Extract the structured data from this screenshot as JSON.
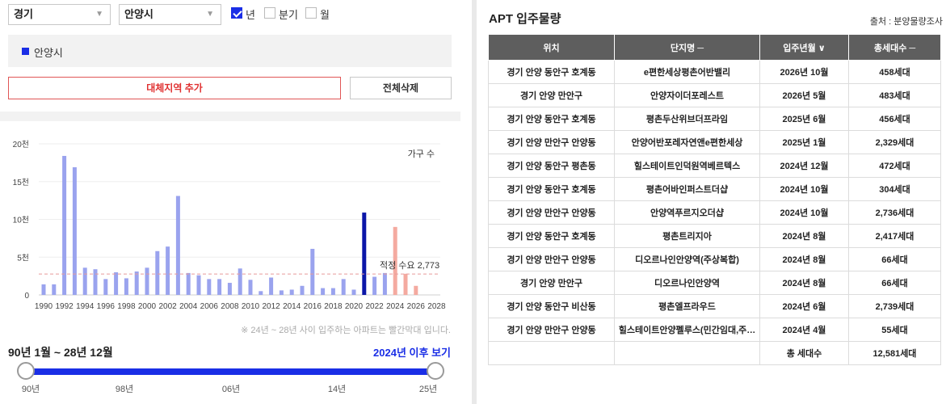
{
  "filters": {
    "province": "경기",
    "city": "안양시",
    "period_options": [
      {
        "label": "년",
        "checked": true
      },
      {
        "label": "분기",
        "checked": false
      },
      {
        "label": "월",
        "checked": false
      }
    ]
  },
  "region": {
    "name": "안양시",
    "color": "#1a2ee6"
  },
  "buttons": {
    "add": "대체지역 추가",
    "delete_all": "전체삭제"
  },
  "chart_data": {
    "type": "bar",
    "legend": "가구 수",
    "categories": [
      "1990",
      "1991",
      "1992",
      "1993",
      "1994",
      "1995",
      "1996",
      "1997",
      "1998",
      "1999",
      "2000",
      "2001",
      "2002",
      "2003",
      "2004",
      "2005",
      "2006",
      "2007",
      "2008",
      "2009",
      "2010",
      "2011",
      "2012",
      "2013",
      "2014",
      "2015",
      "2016",
      "2017",
      "2018",
      "2019",
      "2020",
      "2021",
      "2022",
      "2023",
      "2024",
      "2025",
      "2026",
      "2027",
      "2028"
    ],
    "values": [
      1400,
      1400,
      18400,
      16900,
      3600,
      3400,
      2100,
      3000,
      2200,
      3100,
      3600,
      5800,
      6400,
      13100,
      2900,
      2600,
      2100,
      2100,
      1600,
      3500,
      2000,
      500,
      2300,
      600,
      700,
      1200,
      6100,
      900,
      900,
      2100,
      700,
      10900,
      2400,
      2900,
      9000,
      2800,
      1200,
      0,
      0
    ],
    "x_tick_labels": [
      "1990",
      "1992",
      "1994",
      "1996",
      "1998",
      "2000",
      "2002",
      "2004",
      "2006",
      "2008",
      "2010",
      "2012",
      "2014",
      "2016",
      "2018",
      "2020",
      "2022",
      "2024",
      "2026",
      "2028"
    ],
    "y_tick_labels": [
      "0",
      "5천",
      "10천",
      "15천",
      "20천"
    ],
    "ylim": [
      0,
      20000
    ],
    "reference_line": {
      "label": "적정 수요",
      "value": 2773,
      "value_label": "2,773",
      "color": "#e89a9a"
    },
    "colors": {
      "past": "#9aa3ee",
      "current": "#0b16a8",
      "future": "#f4aaa0"
    },
    "highlight_index": 31,
    "future_from": "2024"
  },
  "chart_note": "※ 24년 ~ 28년 사이 입주하는 아파트는 빨간막대 입니다.",
  "range": {
    "label": "90년 1월 ~ 28년 12월",
    "link": "2024년 이후 보기",
    "slider_labels": [
      "90년",
      "98년",
      "06년",
      "14년",
      "25년"
    ]
  },
  "apt": {
    "title": "APT 입주물량",
    "source": "출처 : 분양물량조사",
    "headers": [
      "위치",
      "단지명 ─",
      "입주년월 ∨",
      "총세대수 ─"
    ],
    "rows": [
      [
        "경기 안양 동안구 호계동",
        "e편한세상평촌어반밸리",
        "2026년 10월",
        "458세대"
      ],
      [
        "경기 안양 만안구",
        "안양자이더포레스트",
        "2026년 5월",
        "483세대"
      ],
      [
        "경기 안양 동안구 호계동",
        "평촌두산위브더프라임",
        "2025년 6월",
        "456세대"
      ],
      [
        "경기 안양 만안구 안양동",
        "안양어반포레자연앤e편한세상",
        "2025년 1월",
        "2,329세대"
      ],
      [
        "경기 안양 동안구 평촌동",
        "힐스테이트인덕원역베르텍스",
        "2024년 12월",
        "472세대"
      ],
      [
        "경기 안양 동안구 호계동",
        "평촌어바인퍼스트더샵",
        "2024년 10월",
        "304세대"
      ],
      [
        "경기 안양 만안구 안양동",
        "안양역푸르지오더샵",
        "2024년 10월",
        "2,736세대"
      ],
      [
        "경기 안양 동안구 호계동",
        "평촌트리지아",
        "2024년 8월",
        "2,417세대"
      ],
      [
        "경기 안양 만안구 안양동",
        "디오르나인안양역(주상복합)",
        "2024년 8월",
        "66세대"
      ],
      [
        "경기 안양 만안구",
        "디오르나인안양역",
        "2024년 8월",
        "66세대"
      ],
      [
        "경기 안양 동안구 비산동",
        "평촌엘프라우드",
        "2024년 6월",
        "2,739세대"
      ],
      [
        "경기 안양 만안구 안양동",
        "힐스테이트안양펠루스(민간임대,주…",
        "2024년 4월",
        "55세대"
      ]
    ],
    "total_label": "총 세대수",
    "total_value": "12,581세대"
  }
}
